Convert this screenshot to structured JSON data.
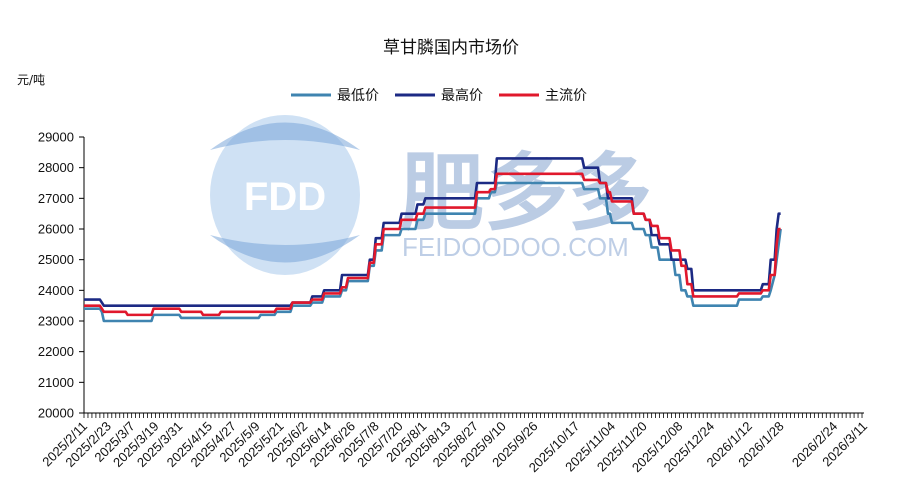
{
  "chart_data": {
    "type": "line",
    "title": "草甘膦国内市场价",
    "unit_label": "元/吨",
    "ylim": [
      20000,
      29000
    ],
    "yticks": [
      29000,
      28000,
      27000,
      26000,
      25000,
      24000,
      23000,
      22000,
      21000,
      20000
    ],
    "xlim": [
      "2025/2/11",
      "2026/3/11"
    ],
    "xticks": [
      "2025/2/11",
      "2025/2/23",
      "2025/3/7",
      "2025/3/19",
      "2025/3/31",
      "2025/4/15",
      "2025/4/27",
      "2025/5/9",
      "2025/5/21",
      "2025/6/2",
      "2025/6/14",
      "2025/6/26",
      "2025/7/8",
      "2025/7/20",
      "2025/8/1",
      "2025/8/13",
      "2025/8/27",
      "2025/9/10",
      "2025/9/26",
      "2025/10/17",
      "2025/11/04",
      "2025/11/20",
      "2025/12/08",
      "2025/12/24",
      "2026/1/12",
      "2026/1/28",
      "2026/2/24",
      "2026/3/11"
    ],
    "legend_position": "top-center",
    "series": [
      {
        "name": "最低价",
        "color": "#3f84b0",
        "points": [
          [
            "2025/2/11",
            23400
          ],
          [
            "2025/2/19",
            23400
          ],
          [
            "2025/2/20",
            23300
          ],
          [
            "2025/2/21",
            23000
          ],
          [
            "2025/3/17",
            23000
          ],
          [
            "2025/3/18",
            23200
          ],
          [
            "2025/3/31",
            23200
          ],
          [
            "2025/4/1",
            23100
          ],
          [
            "2025/5/10",
            23100
          ],
          [
            "2025/5/11",
            23200
          ],
          [
            "2025/5/18",
            23200
          ],
          [
            "2025/5/19",
            23300
          ],
          [
            "2025/5/26",
            23300
          ],
          [
            "2025/5/27",
            23500
          ],
          [
            "2025/6/5",
            23500
          ],
          [
            "2025/6/6",
            23600
          ],
          [
            "2025/6/11",
            23600
          ],
          [
            "2025/6/12",
            23800
          ],
          [
            "2025/6/20",
            23800
          ],
          [
            "2025/6/21",
            24000
          ],
          [
            "2025/6/23",
            24000
          ],
          [
            "2025/6/24",
            24300
          ],
          [
            "2025/7/4",
            24300
          ],
          [
            "2025/7/5",
            24800
          ],
          [
            "2025/7/7",
            24800
          ],
          [
            "2025/7/8",
            25300
          ],
          [
            "2025/7/11",
            25300
          ],
          [
            "2025/7/12",
            25800
          ],
          [
            "2025/7/20",
            25800
          ],
          [
            "2025/7/21",
            26000
          ],
          [
            "2025/7/28",
            26000
          ],
          [
            "2025/7/29",
            26300
          ],
          [
            "2025/8/1",
            26300
          ],
          [
            "2025/8/2",
            26500
          ],
          [
            "2025/8/27",
            26500
          ],
          [
            "2025/8/28",
            27000
          ],
          [
            "2025/9/3",
            27000
          ],
          [
            "2025/9/4",
            27200
          ],
          [
            "2025/9/6",
            27200
          ],
          [
            "2025/9/7",
            27500
          ],
          [
            "2025/10/20",
            27500
          ],
          [
            "2025/10/21",
            27300
          ],
          [
            "2025/10/28",
            27300
          ],
          [
            "2025/10/29",
            27000
          ],
          [
            "2025/11/1",
            27000
          ],
          [
            "2025/11/2",
            26500
          ],
          [
            "2025/11/3",
            26500
          ],
          [
            "2025/11/4",
            26200
          ],
          [
            "2025/11/14",
            26200
          ],
          [
            "2025/11/15",
            26000
          ],
          [
            "2025/11/20",
            26000
          ],
          [
            "2025/11/21",
            25800
          ],
          [
            "2025/11/23",
            25800
          ],
          [
            "2025/11/24",
            25400
          ],
          [
            "2025/11/27",
            25400
          ],
          [
            "2025/11/28",
            25000
          ],
          [
            "2025/12/5",
            25000
          ],
          [
            "2025/12/6",
            24500
          ],
          [
            "2025/12/8",
            24500
          ],
          [
            "2025/12/9",
            24000
          ],
          [
            "2025/12/11",
            24000
          ],
          [
            "2025/12/12",
            23800
          ],
          [
            "2025/12/14",
            23800
          ],
          [
            "2025/12/15",
            23500
          ],
          [
            "2026/1/6",
            23500
          ],
          [
            "2026/1/7",
            23700
          ],
          [
            "2026/1/18",
            23700
          ],
          [
            "2026/1/19",
            23800
          ],
          [
            "2026/1/22",
            23800
          ],
          [
            "2026/1/23",
            24000
          ],
          [
            "2026/1/25",
            24500
          ],
          [
            "2026/1/26",
            25000
          ],
          [
            "2026/1/27",
            25500
          ],
          [
            "2026/1/28",
            26000
          ]
        ]
      },
      {
        "name": "最高价",
        "color": "#1c2a84",
        "points": [
          [
            "2025/2/11",
            23700
          ],
          [
            "2025/2/19",
            23700
          ],
          [
            "2025/2/20",
            23600
          ],
          [
            "2025/2/21",
            23500
          ],
          [
            "2025/5/26",
            23500
          ],
          [
            "2025/5/27",
            23600
          ],
          [
            "2025/6/5",
            23600
          ],
          [
            "2025/6/6",
            23800
          ],
          [
            "2025/6/11",
            23800
          ],
          [
            "2025/6/12",
            24000
          ],
          [
            "2025/6/20",
            24000
          ],
          [
            "2025/6/21",
            24500
          ],
          [
            "2025/7/4",
            24500
          ],
          [
            "2025/7/5",
            25000
          ],
          [
            "2025/7/7",
            25000
          ],
          [
            "2025/7/8",
            25700
          ],
          [
            "2025/7/11",
            25700
          ],
          [
            "2025/7/12",
            26200
          ],
          [
            "2025/7/20",
            26200
          ],
          [
            "2025/7/21",
            26500
          ],
          [
            "2025/7/28",
            26500
          ],
          [
            "2025/7/29",
            26800
          ],
          [
            "2025/8/1",
            26800
          ],
          [
            "2025/8/2",
            27000
          ],
          [
            "2025/8/27",
            27000
          ],
          [
            "2025/8/28",
            27500
          ],
          [
            "2025/9/6",
            27500
          ],
          [
            "2025/9/7",
            28300
          ],
          [
            "2025/10/20",
            28300
          ],
          [
            "2025/10/21",
            28000
          ],
          [
            "2025/10/28",
            28000
          ],
          [
            "2025/10/29",
            27500
          ],
          [
            "2025/11/1",
            27500
          ],
          [
            "2025/11/2",
            27000
          ],
          [
            "2025/11/14",
            27000
          ],
          [
            "2025/11/15",
            26500
          ],
          [
            "2025/11/20",
            26500
          ],
          [
            "2025/11/21",
            26300
          ],
          [
            "2025/11/23",
            26300
          ],
          [
            "2025/11/24",
            25800
          ],
          [
            "2025/11/27",
            25800
          ],
          [
            "2025/11/28",
            25500
          ],
          [
            "2025/12/3",
            25500
          ],
          [
            "2025/12/4",
            25000
          ],
          [
            "2025/12/11",
            25000
          ],
          [
            "2025/12/12",
            24700
          ],
          [
            "2025/12/14",
            24700
          ],
          [
            "2025/12/15",
            24000
          ],
          [
            "2026/1/18",
            24000
          ],
          [
            "2026/1/19",
            24200
          ],
          [
            "2026/1/22",
            24200
          ],
          [
            "2026/1/23",
            25000
          ],
          [
            "2026/1/25",
            25000
          ],
          [
            "2026/1/26",
            26000
          ],
          [
            "2026/1/27",
            26500
          ],
          [
            "2026/1/28",
            26500
          ]
        ]
      },
      {
        "name": "主流价",
        "color": "#e0182c",
        "points": [
          [
            "2025/2/11",
            23500
          ],
          [
            "2025/2/19",
            23500
          ],
          [
            "2025/2/20",
            23400
          ],
          [
            "2025/2/21",
            23300
          ],
          [
            "2025/3/4",
            23300
          ],
          [
            "2025/3/5",
            23200
          ],
          [
            "2025/3/17",
            23200
          ],
          [
            "2025/3/18",
            23400
          ],
          [
            "2025/3/31",
            23400
          ],
          [
            "2025/4/1",
            23300
          ],
          [
            "2025/4/11",
            23300
          ],
          [
            "2025/4/12",
            23200
          ],
          [
            "2025/4/20",
            23200
          ],
          [
            "2025/4/21",
            23300
          ],
          [
            "2025/5/18",
            23300
          ],
          [
            "2025/5/19",
            23400
          ],
          [
            "2025/5/26",
            23400
          ],
          [
            "2025/5/27",
            23600
          ],
          [
            "2025/6/5",
            23600
          ],
          [
            "2025/6/6",
            23700
          ],
          [
            "2025/6/11",
            23700
          ],
          [
            "2025/6/12",
            23900
          ],
          [
            "2025/6/20",
            23900
          ],
          [
            "2025/6/21",
            24100
          ],
          [
            "2025/6/23",
            24100
          ],
          [
            "2025/6/24",
            24400
          ],
          [
            "2025/7/4",
            24400
          ],
          [
            "2025/7/5",
            24900
          ],
          [
            "2025/7/7",
            24900
          ],
          [
            "2025/7/8",
            25500
          ],
          [
            "2025/7/11",
            25500
          ],
          [
            "2025/7/12",
            26000
          ],
          [
            "2025/7/20",
            26000
          ],
          [
            "2025/7/21",
            26300
          ],
          [
            "2025/7/28",
            26300
          ],
          [
            "2025/7/29",
            26500
          ],
          [
            "2025/8/1",
            26500
          ],
          [
            "2025/8/2",
            26700
          ],
          [
            "2025/8/27",
            26700
          ],
          [
            "2025/8/28",
            27200
          ],
          [
            "2025/9/3",
            27200
          ],
          [
            "2025/9/4",
            27300
          ],
          [
            "2025/9/6",
            27300
          ],
          [
            "2025/9/7",
            27800
          ],
          [
            "2025/10/20",
            27800
          ],
          [
            "2025/10/21",
            27600
          ],
          [
            "2025/10/28",
            27600
          ],
          [
            "2025/10/29",
            27500
          ],
          [
            "2025/11/1",
            27500
          ],
          [
            "2025/11/2",
            27200
          ],
          [
            "2025/11/3",
            27200
          ],
          [
            "2025/11/4",
            26900
          ],
          [
            "2025/11/14",
            26900
          ],
          [
            "2025/11/15",
            26500
          ],
          [
            "2025/11/20",
            26500
          ],
          [
            "2025/11/21",
            26300
          ],
          [
            "2025/11/23",
            26300
          ],
          [
            "2025/11/24",
            26100
          ],
          [
            "2025/11/27",
            26100
          ],
          [
            "2025/11/28",
            25700
          ],
          [
            "2025/12/3",
            25700
          ],
          [
            "2025/12/4",
            25300
          ],
          [
            "2025/12/8",
            25300
          ],
          [
            "2025/12/9",
            24800
          ],
          [
            "2025/12/11",
            24800
          ],
          [
            "2025/12/12",
            24200
          ],
          [
            "2025/12/14",
            24200
          ],
          [
            "2025/12/15",
            23800
          ],
          [
            "2026/1/6",
            23800
          ],
          [
            "2026/1/7",
            23900
          ],
          [
            "2026/1/18",
            23900
          ],
          [
            "2026/1/19",
            24000
          ],
          [
            "2026/1/22",
            24000
          ],
          [
            "2026/1/23",
            24500
          ],
          [
            "2026/1/25",
            24500
          ],
          [
            "2026/1/26",
            25500
          ],
          [
            "2026/1/27",
            26000
          ],
          [
            "2026/1/28",
            26000
          ]
        ]
      }
    ]
  },
  "watermark": {
    "logo_text": "FDD",
    "cn_text": "肥多多",
    "url_text": "FEIDOODOO.COM",
    "color": "#8fb3de"
  }
}
